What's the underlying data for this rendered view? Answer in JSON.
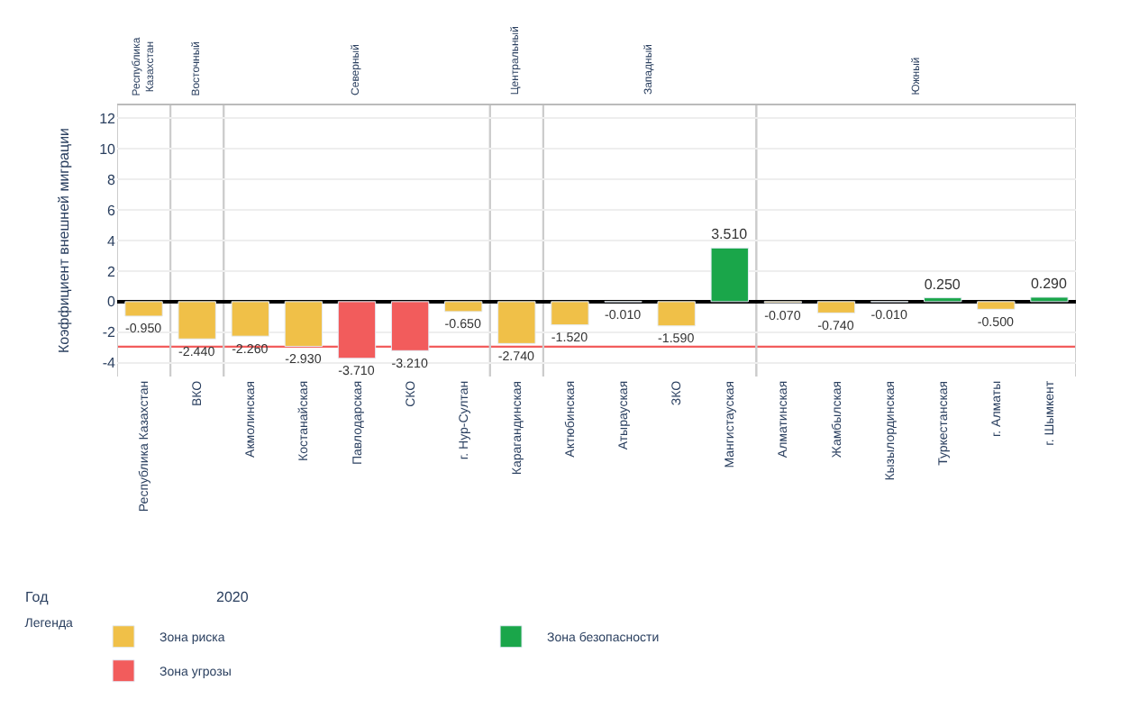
{
  "chart_data": {
    "type": "bar",
    "ylabel": "Коэффициент внешней миграции",
    "legend_title": "Легенда",
    "categories": [
      "Республика Казахстан",
      "ВКО",
      "Акмолинская",
      "Костанайская",
      "Павлодарская",
      "СКО",
      "г. Нур-Султан",
      "Карагандинская",
      "Актюбинская",
      "Атырауская",
      "ЗКО",
      "Мангистауская",
      "Алматинская",
      "Жамбылская",
      "Кызылординская",
      "Туркестанская",
      "г. Алматы",
      "г. Шымкент"
    ],
    "series": [
      {
        "name": "Зона риска",
        "color": "#f0c048",
        "values": [
          -0.95,
          -2.44,
          -2.26,
          -2.93,
          null,
          null,
          -0.65,
          -2.74,
          -1.52,
          -0.01,
          -1.59,
          null,
          -0.07,
          -0.74,
          -0.01,
          null,
          -0.5,
          null
        ],
        "value_labels": [
          "-0.950",
          "-2.440",
          "-2.260",
          "-2.930",
          null,
          null,
          "-0.650",
          "-2.740",
          "-1.520",
          "-0.010",
          "-1.590",
          null,
          "-0.070",
          "-0.740",
          "-0.010",
          null,
          "-0.500",
          null
        ]
      },
      {
        "name": "Зона безопасности",
        "color": "#1aa64a",
        "values": [
          null,
          null,
          null,
          null,
          null,
          null,
          null,
          null,
          null,
          null,
          null,
          3.51,
          null,
          null,
          null,
          0.25,
          null,
          0.29
        ],
        "value_labels": [
          null,
          null,
          null,
          null,
          null,
          null,
          null,
          null,
          null,
          null,
          null,
          "3.510",
          null,
          null,
          null,
          "0.250",
          null,
          "0.290"
        ]
      },
      {
        "name": "Зона угрозы",
        "color": "#f25c5c",
        "values": [
          null,
          null,
          null,
          null,
          -3.71,
          -3.21,
          null,
          null,
          null,
          null,
          null,
          null,
          null,
          null,
          null,
          null,
          null,
          null
        ],
        "value_labels": [
          null,
          null,
          null,
          null,
          "-3.710",
          "-3.210",
          null,
          null,
          null,
          null,
          null,
          null,
          null,
          null,
          null,
          null,
          null,
          null
        ]
      }
    ],
    "ylim": [
      -4.9,
      12.9
    ],
    "yticks": [
      -4,
      -2,
      0,
      2,
      4,
      6,
      8,
      10,
      12
    ],
    "grid": "y",
    "legend": "bottom",
    "ref_lines": [
      {
        "axis": "y",
        "value": -2.95,
        "color": "#f25c5c"
      }
    ],
    "annotations": [
      "Республика Казахстан",
      "Восточный",
      "Северный",
      "Центральный",
      "Западный",
      "Южный",
      "Год",
      "2020"
    ]
  }
}
